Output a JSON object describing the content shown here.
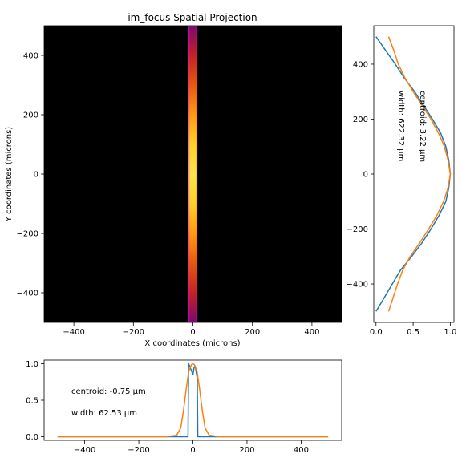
{
  "chart_data": [
    {
      "type": "heatmap",
      "title": "im_focus Spatial Projection",
      "xlabel": "X coordinates (microns)",
      "ylabel": "Y coordinates (microns)",
      "xlim": [
        -500,
        500
      ],
      "ylim": [
        -500,
        500
      ],
      "xticks": [
        -400,
        -200,
        0,
        200,
        400
      ],
      "yticks": [
        -400,
        -200,
        0,
        200,
        400
      ],
      "background": "#000000",
      "stripe": {
        "x_range": [
          -15,
          15
        ],
        "colors": [
          "#7a0a6e",
          "#c32222",
          "#e55a0c",
          "#ff9a10",
          "#ffd226",
          "#ffe34a"
        ]
      }
    },
    {
      "type": "line",
      "orientation": "vertical",
      "xlim": [
        -0.03,
        1.05
      ],
      "ylim": [
        -540,
        540
      ],
      "xticks": [
        "0.0",
        "0.5",
        "1.0"
      ],
      "yticks": [
        -400,
        -200,
        0,
        200,
        400
      ],
      "annotations": [
        "centroid: 3.22 μm",
        "width: 622.32 μm"
      ],
      "series": [
        {
          "color": "#1f77b4",
          "y": [
            -500,
            -450,
            -400,
            -350,
            -300,
            -250,
            -200,
            -150,
            -100,
            -50,
            0,
            50,
            100,
            150,
            200,
            250,
            300,
            350,
            400,
            450,
            500
          ],
          "x": [
            0.0,
            0.11,
            0.22,
            0.33,
            0.48,
            0.62,
            0.74,
            0.85,
            0.94,
            0.98,
            1.0,
            0.98,
            0.94,
            0.87,
            0.76,
            0.64,
            0.52,
            0.38,
            0.26,
            0.13,
            0.0
          ]
        },
        {
          "color": "#ff7f0e",
          "y": [
            -500,
            -450,
            -400,
            -350,
            -300,
            -250,
            -200,
            -150,
            -100,
            -50,
            0,
            50,
            100,
            150,
            200,
            250,
            300,
            350,
            400,
            450,
            500
          ],
          "x": [
            0.17,
            0.23,
            0.29,
            0.36,
            0.46,
            0.59,
            0.71,
            0.82,
            0.91,
            0.97,
            1.0,
            0.97,
            0.92,
            0.84,
            0.74,
            0.62,
            0.5,
            0.39,
            0.3,
            0.24,
            0.17
          ]
        }
      ]
    },
    {
      "type": "line",
      "xlim": [
        -550,
        550
      ],
      "ylim": [
        -0.05,
        1.05
      ],
      "xticks": [
        -400,
        -200,
        0,
        200,
        400
      ],
      "yticks": [
        "0.0",
        "0.5",
        "1.0"
      ],
      "annotations": [
        "centroid: -0.75 μm",
        "width: 62.53 μm"
      ],
      "series": [
        {
          "color": "#1f77b4",
          "x": [
            -500,
            -100,
            -18,
            -16,
            -12,
            -8,
            -4,
            0,
            4,
            8,
            12,
            16,
            18,
            100,
            500
          ],
          "y": [
            0,
            0,
            0,
            1.0,
            0.97,
            0.93,
            0.89,
            0.85,
            0.94,
            0.97,
            0.9,
            0.8,
            0,
            0,
            0
          ]
        },
        {
          "color": "#ff7f0e",
          "x": [
            -500,
            -100,
            -60,
            -45,
            -35,
            -25,
            -15,
            -5,
            0,
            5,
            15,
            25,
            35,
            45,
            60,
            100,
            500
          ],
          "y": [
            0,
            0,
            0.02,
            0.12,
            0.35,
            0.65,
            0.9,
            0.99,
            1.0,
            0.99,
            0.9,
            0.65,
            0.35,
            0.12,
            0.02,
            0,
            0
          ]
        }
      ]
    }
  ]
}
